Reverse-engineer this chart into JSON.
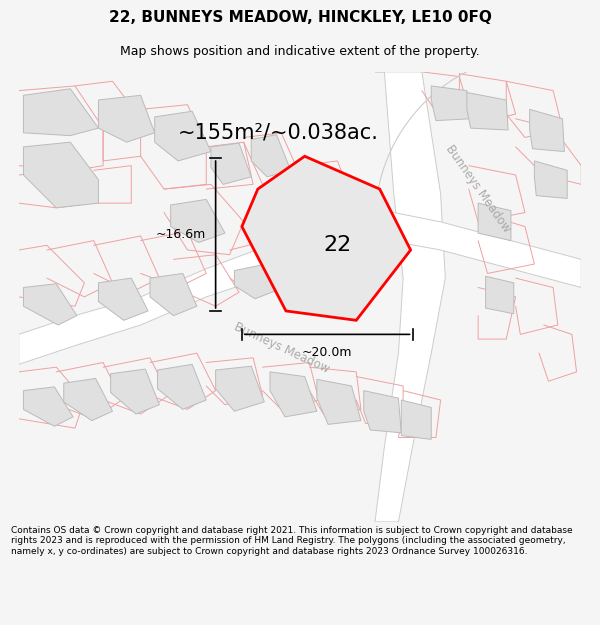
{
  "title": "22, BUNNEYS MEADOW, HINCKLEY, LE10 0FQ",
  "subtitle": "Map shows position and indicative extent of the property.",
  "area_label": "~155m²/~0.038ac.",
  "plot_number": "22",
  "dim_width": "~20.0m",
  "dim_height": "~16.6m",
  "footer": "Contains OS data © Crown copyright and database right 2021. This information is subject to Crown copyright and database rights 2023 and is reproduced with the permission of HM Land Registry. The polygons (including the associated geometry, namely x, y co-ordinates) are subject to Crown copyright and database rights 2023 Ordnance Survey 100026316.",
  "bg_color": "#f5f5f5",
  "map_bg": "#ffffff",
  "plot_boundary_color": "#f0a0a0",
  "building_fill": "#e0e0e0",
  "building_edge": "#bbbbbb",
  "road_fill": "#f5f5f5",
  "road_edge": "#cccccc",
  "plot_fill": "#e8e8e8",
  "plot_edge": "#ff0000",
  "plot_edge_width": 2.0,
  "street_label_color": "#aaaaaa",
  "title_fontsize": 11,
  "subtitle_fontsize": 9,
  "footer_fontsize": 6.5,
  "area_label_size": 15,
  "plot_number_size": 16,
  "dim_fontsize": 9,
  "figsize": [
    6.0,
    6.25
  ],
  "dpi": 100
}
